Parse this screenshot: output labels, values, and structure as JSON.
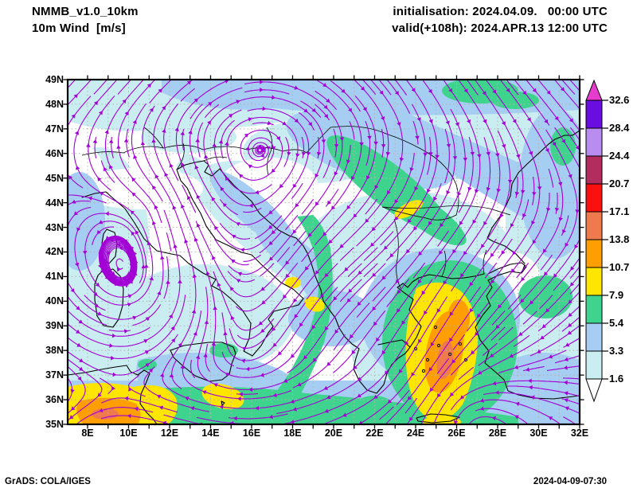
{
  "header": {
    "model": "NMMB_v1.0_10km",
    "field": "10m Wind  [m/s]",
    "init": "initialisation: 2024.04.09.   00:00 UTC",
    "valid": "valid(+108h): 2024.APR.13 12:00 UTC"
  },
  "map": {
    "lat_labels": [
      "49N",
      "48N",
      "47N",
      "46N",
      "45N",
      "44N",
      "43N",
      "42N",
      "41N",
      "40N",
      "39N",
      "38N",
      "37N",
      "36N",
      "35N"
    ],
    "lon_labels": [
      "8E",
      "10E",
      "12E",
      "14E",
      "16E",
      "18E",
      "20E",
      "22E",
      "24E",
      "26E",
      "28E",
      "30E",
      "32E"
    ]
  },
  "colorbar": {
    "levels": [
      "32.6",
      "28.4",
      "24.4",
      "20.7",
      "17.1",
      "13.8",
      "10.7",
      "7.9",
      "5.4",
      "3.3",
      "1.6"
    ],
    "seg_colors": [
      "#6a0de0",
      "#b98df0",
      "#b22c5e",
      "#fb1010",
      "#ee7a4e",
      "#ff9e00",
      "#ffe600",
      "#3fd48e",
      "#a6cdf2",
      "#c9edf0"
    ],
    "over_color": "#e63ccd",
    "under_color": "#ffffff"
  },
  "footer": {
    "left": "GrADS: COLA/IGES",
    "right": "2024-04-09-07:30"
  },
  "palette": {
    "shade_cyan": "#c9edf0",
    "shade_blue": "#a6cdf2",
    "shade_green": "#3fd48e",
    "shade_yellow": "#ffe600",
    "shade_orange": "#ff9e00",
    "shade_salmon": "#ee7a4e",
    "streamline": "#a300d6",
    "coastline": "#000000",
    "grid": "#b3b3b3",
    "frame": "#000000"
  },
  "chart_data": {
    "type": "heatmap",
    "title": "NMMB_v1.0_10km 10m Wind [m/s] streamline map",
    "region": {
      "lon_min_label": "8E",
      "lon_max_label": "32E",
      "lat_min_label": "35N",
      "lat_max_label": "49N"
    },
    "legend_levels_m_s": [
      1.6,
      3.3,
      5.4,
      7.9,
      10.7,
      13.8,
      17.1,
      20.7,
      24.4,
      28.4,
      32.6
    ],
    "legend_position": "right"
  }
}
